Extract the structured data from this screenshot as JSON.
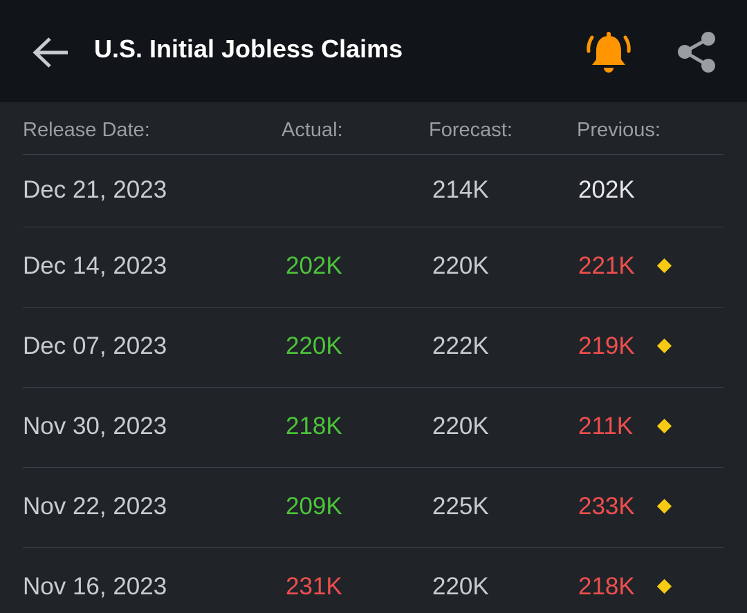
{
  "header": {
    "title": "U.S. Initial Jobless Claims"
  },
  "table": {
    "columns": [
      "Release Date:",
      "Actual:",
      "Forecast:",
      "Previous:"
    ],
    "rows": [
      [
        "Dec 21, 2023",
        null,
        "214K",
        "202K"
      ],
      [
        "Dec 14, 2023",
        "202K",
        "220K",
        "221K"
      ],
      [
        "Dec 07, 2023",
        "220K",
        "222K",
        "219K"
      ],
      [
        "Nov 30, 2023",
        "218K",
        "220K",
        "211K"
      ],
      [
        "Nov 22, 2023",
        "209K",
        "225K",
        "233K"
      ],
      [
        "Nov 16, 2023",
        "231K",
        "220K",
        "218K"
      ]
    ]
  }
}
